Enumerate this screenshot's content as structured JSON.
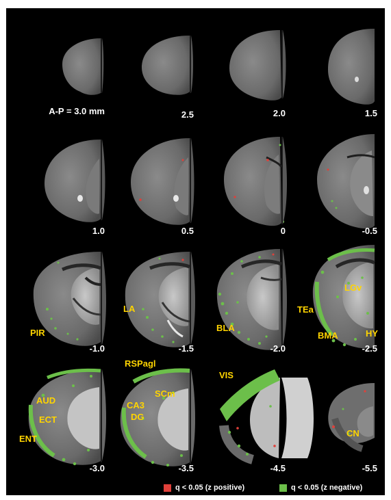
{
  "colors": {
    "background": "#000000",
    "positive": "#e0403a",
    "negative": "#6cbf4a",
    "region_label": "#ffd400"
  },
  "slices": [
    {
      "label": "A-P = 3.0 mm",
      "regions": []
    },
    {
      "label": "2.5",
      "regions": []
    },
    {
      "label": "2.0",
      "regions": []
    },
    {
      "label": "1.5",
      "regions": []
    },
    {
      "label": "1.0",
      "regions": []
    },
    {
      "label": "0.5",
      "regions": []
    },
    {
      "label": "0",
      "regions": []
    },
    {
      "label": "-0.5",
      "regions": []
    },
    {
      "label": "-1.0",
      "regions": [
        "PIR"
      ]
    },
    {
      "label": "-1.5",
      "regions": [
        "LA"
      ]
    },
    {
      "label": "-2.0",
      "regions": [
        "BLA"
      ]
    },
    {
      "label": "-2.5",
      "regions": [
        "LGv",
        "TEa",
        "BMA",
        "HY"
      ]
    },
    {
      "label": "-3.0",
      "regions": [
        "AUD",
        "ECT",
        "ENT"
      ]
    },
    {
      "label": "-3.5",
      "regions": [
        "RSPagl",
        "SCm",
        "CA3",
        "DG"
      ]
    },
    {
      "label": "-4.5",
      "regions": [
        "VIS"
      ]
    },
    {
      "label": "-5.5",
      "regions": [
        "CN"
      ]
    }
  ],
  "legend": [
    {
      "label": "q < 0.05 (z positive)",
      "color": "#e0403a"
    },
    {
      "label": "q < 0.05 (z negative)",
      "color": "#6cbf4a"
    }
  ]
}
